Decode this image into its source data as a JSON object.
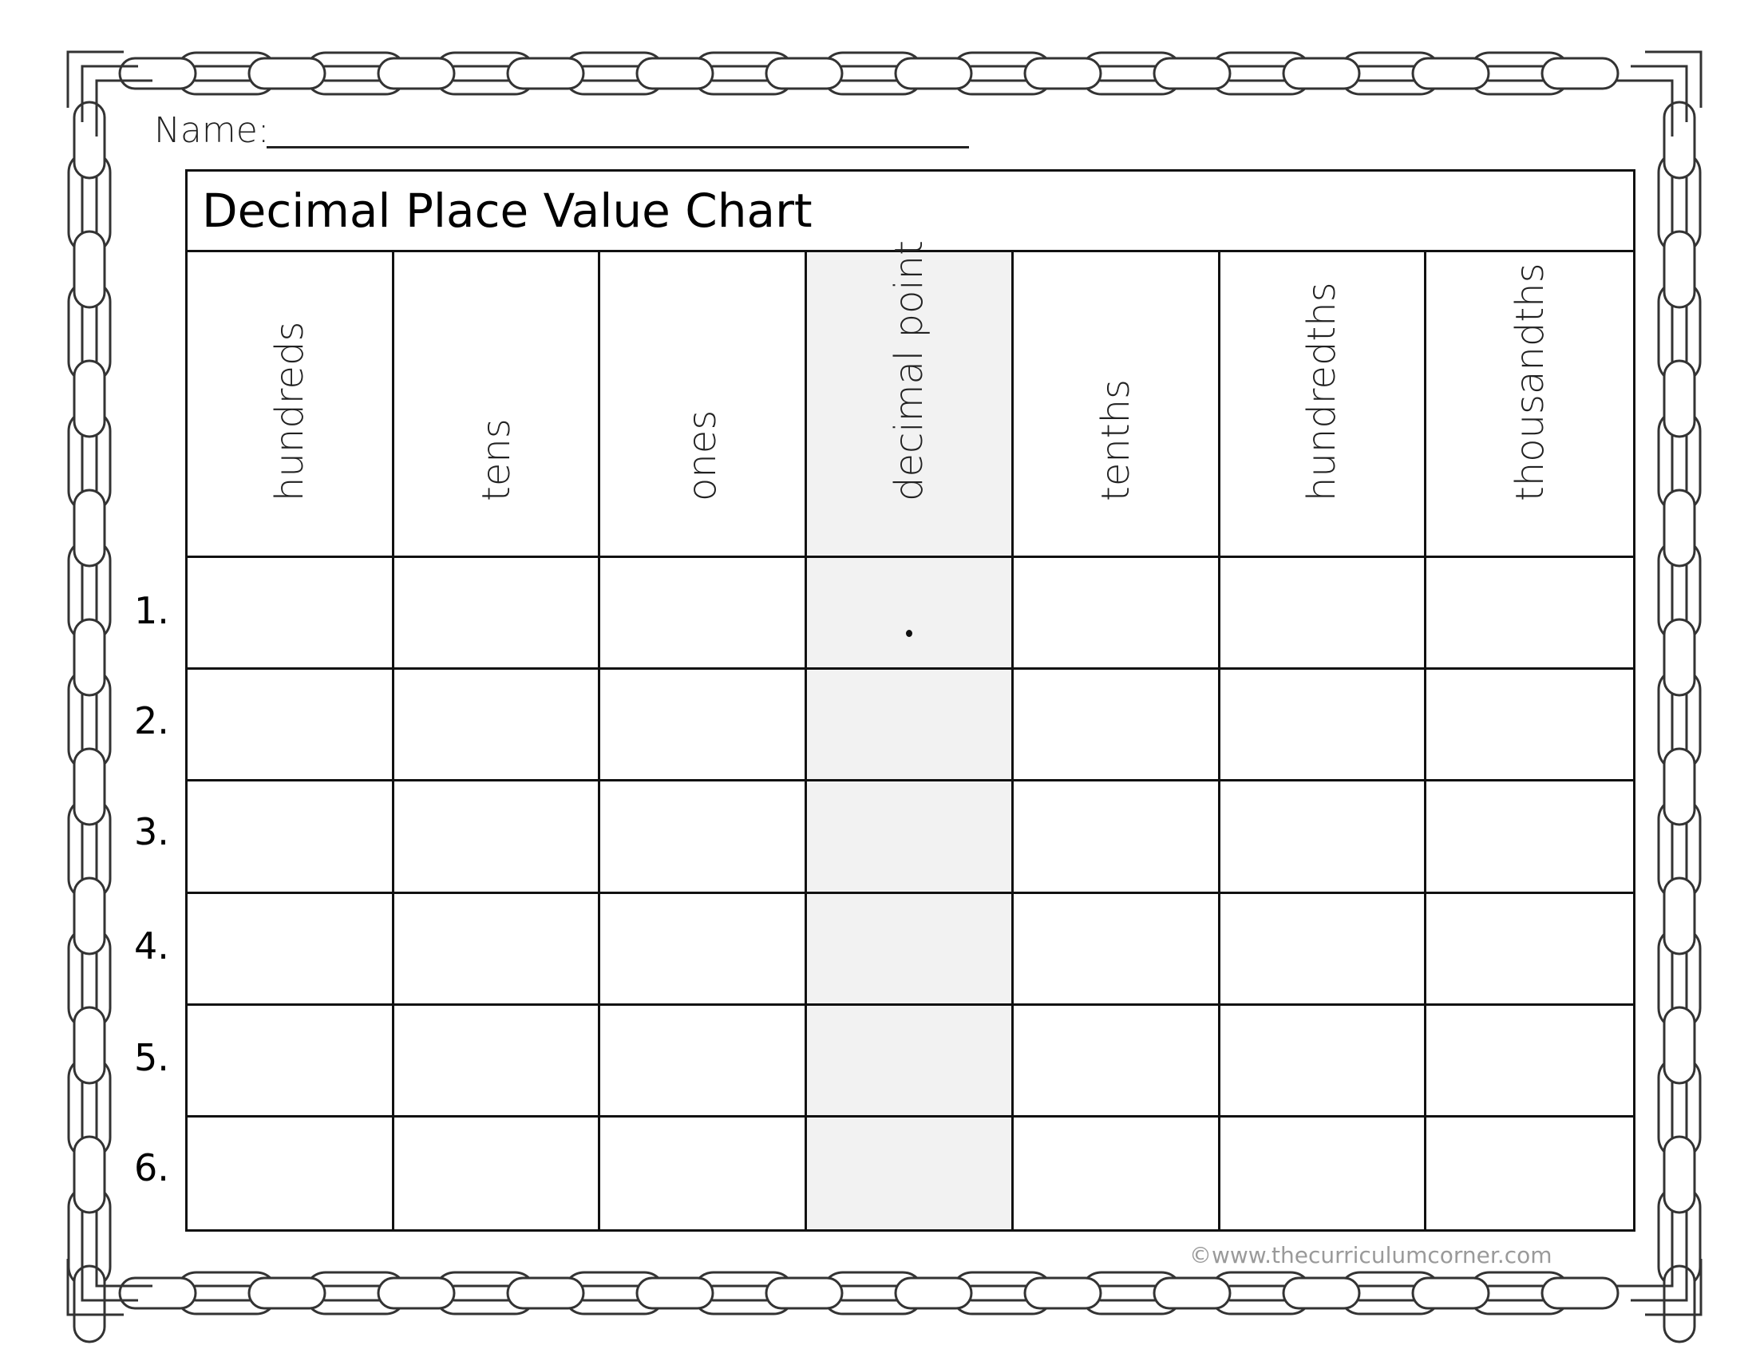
{
  "name_label": "Name:",
  "title": "Decimal Place Value Chart",
  "columns": [
    "hundreds",
    "tens",
    "ones",
    "decimal point",
    "tenths",
    "hundredths",
    "thousandths"
  ],
  "row_numbers": [
    "1.",
    "2.",
    "3.",
    "4.",
    "5.",
    "6."
  ],
  "decimal_mark": ".",
  "copyright": "©www.thecurriculumcorner.com",
  "colors": {
    "decimal_column": "#f2f2f2",
    "border": "#333333"
  }
}
